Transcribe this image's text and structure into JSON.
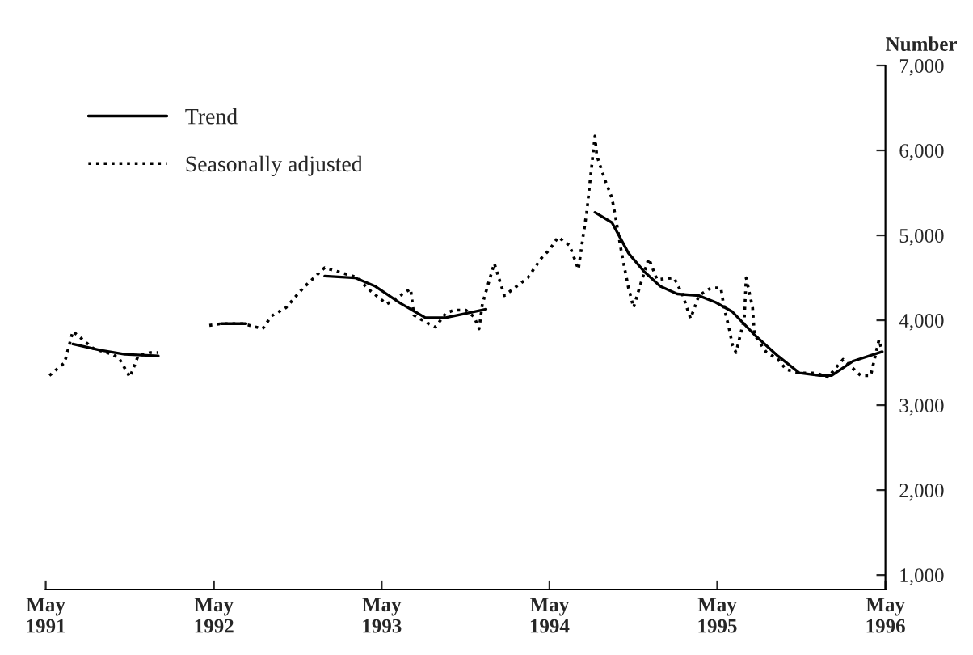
{
  "chart_data": {
    "type": "line",
    "ylabel": "Number",
    "series": [
      {
        "name": "Trend",
        "color": "#000000",
        "line_style": "solid",
        "x": [
          "1991-06-29",
          "1991-08-26",
          "1991-10-20",
          "1992-01-01",
          "1992-02-25",
          "1992-05-16",
          "1992-07-10",
          "1992-10-02",
          "1992-12-28",
          "1993-03-04",
          "1993-04-17",
          "1993-06-11",
          "1993-08-04",
          "1993-09-17",
          "1993-10-31",
          "1993-12-14",
          "1994-03-15",
          "1994-08-08",
          "1994-09-14",
          "1994-10-20",
          "1994-11-22",
          "1994-12-28",
          "1995-02-03",
          "1995-03-22",
          "1995-04-28",
          "1995-06-03",
          "1995-07-21",
          "1995-09-10",
          "1995-10-27",
          "1995-12-10",
          "1996-01-05",
          "1996-02-21",
          "1996-04-24"
        ],
        "values": [
          3720,
          3650,
          3600,
          3580,
          null,
          3960,
          3960,
          null,
          4520,
          4500,
          4400,
          4200,
          4030,
          4030,
          4080,
          4130,
          null,
          5270,
          5150,
          4790,
          4580,
          4400,
          4310,
          4290,
          4210,
          4100,
          3830,
          3580,
          3380,
          3350,
          3350,
          3520,
          3630
        ]
      },
      {
        "name": "Seasonally adjusted",
        "color": "#000000",
        "line_style": "dotted",
        "x": [
          "1991-05-09",
          "1991-06-11",
          "1991-06-29",
          "1991-07-21",
          "1991-08-12",
          "1991-09-03",
          "1991-09-24",
          "1991-10-09",
          "1991-10-31",
          "1991-11-18",
          "1991-12-14",
          "1992-01-01",
          "1992-02-25",
          "1992-04-21",
          "1992-05-16",
          "1992-06-11",
          "1992-07-03",
          "1992-08-15",
          "1992-09-03",
          "1992-10-05",
          "1992-11-11",
          "1992-12-28",
          "1993-03-11",
          "1993-03-30",
          "1993-05-12",
          "1993-07-03",
          "1993-07-10",
          "1993-08-04",
          "1993-08-26",
          "1993-09-17",
          "1993-10-05",
          "1993-10-31",
          "1993-11-18",
          "1993-11-29",
          "1993-12-06",
          "1994-01-01",
          "1994-01-23",
          "1994-03-15",
          "1994-04-13",
          "1994-05-01",
          "1994-05-20",
          "1994-06-14",
          "1994-07-03",
          "1994-07-13",
          "1994-07-21",
          "1994-08-08",
          "1994-08-12",
          "1994-08-30",
          "1994-09-14",
          "1994-09-24",
          "1994-10-05",
          "1994-10-20",
          "1994-10-31",
          "1994-11-15",
          "1994-12-03",
          "1994-12-21",
          "1995-01-27",
          "1995-02-14",
          "1995-03-04",
          "1995-03-22",
          "1995-04-17",
          "1995-05-09",
          "1995-05-16",
          "1995-05-27",
          "1995-06-03",
          "1995-06-11",
          "1995-06-29",
          "1995-07-03",
          "1995-07-17",
          "1995-07-21",
          "1995-08-15",
          "1995-09-10",
          "1995-09-28",
          "1995-10-27",
          "1995-12-03",
          "1995-12-28",
          "1996-01-30",
          "1996-03-08",
          "1996-03-30",
          "1996-04-17",
          "1996-04-24"
        ],
        "values": [
          3350,
          3500,
          3870,
          3770,
          3670,
          3630,
          3600,
          3540,
          3330,
          3580,
          3620,
          3620,
          null,
          3940,
          3960,
          3960,
          3960,
          3900,
          4050,
          4150,
          4380,
          4620,
          4500,
          4380,
          4190,
          4370,
          4060,
          3980,
          3920,
          4080,
          4120,
          4120,
          4040,
          3900,
          4190,
          4670,
          4290,
          4500,
          4730,
          4830,
          4980,
          4880,
          4600,
          4980,
          5270,
          6170,
          5940,
          5650,
          5440,
          5150,
          4790,
          4380,
          4150,
          4420,
          4730,
          4480,
          4500,
          4310,
          4020,
          4290,
          4380,
          4380,
          4150,
          3900,
          3710,
          3620,
          4020,
          4500,
          4150,
          3830,
          3630,
          3540,
          3420,
          3380,
          3380,
          3330,
          3540,
          3350,
          3350,
          3770,
          3630
        ]
      }
    ],
    "xlim": [
      "1991-05-01",
      "1996-05-01"
    ],
    "xticks": [
      {
        "value": "1991-05-01",
        "label": "May\n1991"
      },
      {
        "value": "1992-05-01",
        "label": "May\n1992"
      },
      {
        "value": "1993-05-01",
        "label": "May\n1993"
      },
      {
        "value": "1994-05-01",
        "label": "May\n1994"
      },
      {
        "value": "1995-05-01",
        "label": "May\n1995"
      },
      {
        "value": "1996-05-01",
        "label": "May\n1996"
      }
    ],
    "ylim": [
      830,
      7000
    ],
    "yticks": [
      {
        "value": 1000,
        "label": "1,000"
      },
      {
        "value": 2000,
        "label": "2,000"
      },
      {
        "value": 3000,
        "label": "3,000"
      },
      {
        "value": 4000,
        "label": "4,000"
      },
      {
        "value": 5000,
        "label": "5,000"
      },
      {
        "value": 6000,
        "label": "6,000"
      },
      {
        "value": 7000,
        "label": "7,000"
      }
    ],
    "grid": false,
    "legend": "top left",
    "marker": "none"
  }
}
